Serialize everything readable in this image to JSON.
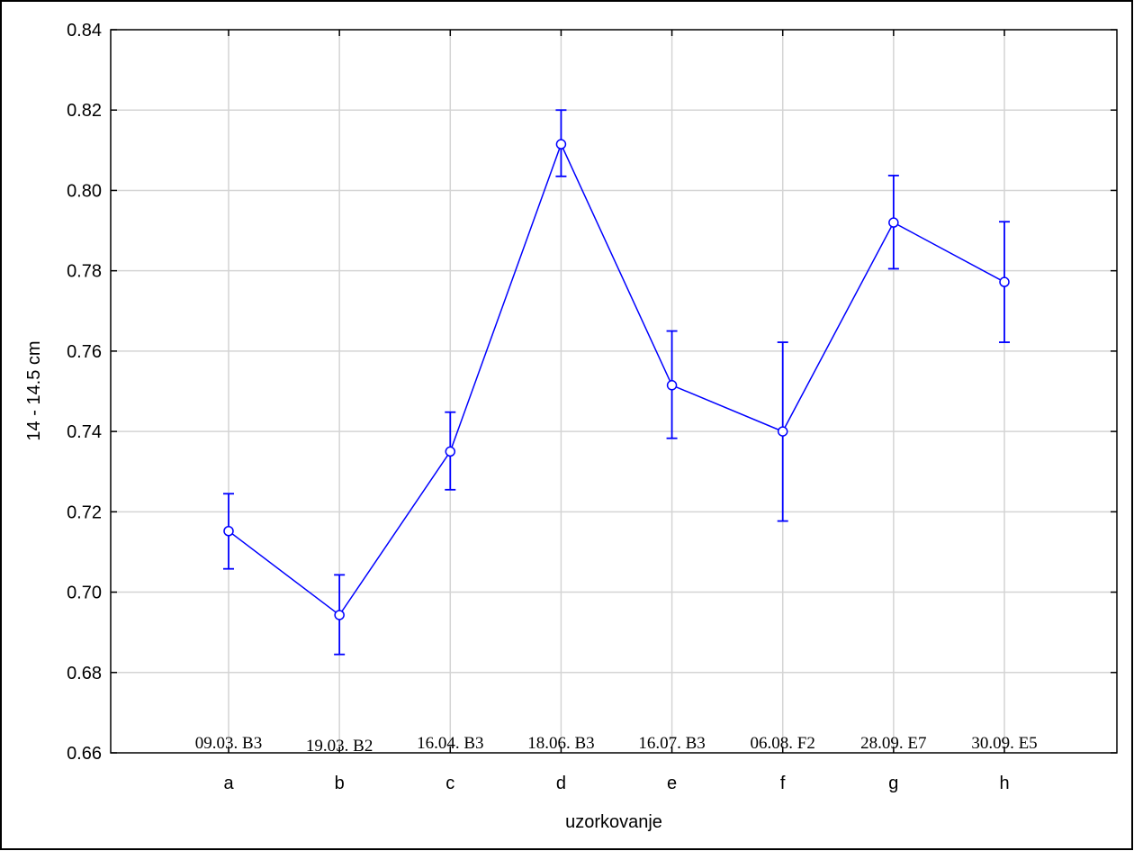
{
  "chart_data": {
    "type": "line",
    "xlabel": "uzorkovanje",
    "ylabel": "14 - 14.5 cm",
    "ylim": [
      0.66,
      0.84
    ],
    "yticks": [
      "0.66",
      "0.68",
      "0.70",
      "0.72",
      "0.74",
      "0.76",
      "0.78",
      "0.80",
      "0.82",
      "0.84"
    ],
    "grid": true,
    "error_bars": true,
    "series_color": "#0000ff",
    "categories": [
      "a",
      "b",
      "c",
      "d",
      "e",
      "f",
      "g",
      "h"
    ],
    "annotations": [
      "09.03. B3",
      "19.03. B2",
      "16.04. B3",
      "18.06. B3",
      "16.07. B3",
      "06.08. F2",
      "28.09. E7",
      "30.09. E5"
    ],
    "series": [
      {
        "values": [
          0.7152,
          0.6943,
          0.735,
          0.8115,
          0.7515,
          0.74,
          0.792,
          0.7772
        ],
        "lower": [
          0.7058,
          0.6845,
          0.7255,
          0.8035,
          0.7383,
          0.7177,
          0.7805,
          0.7622
        ],
        "upper": [
          0.7245,
          0.7043,
          0.7448,
          0.82,
          0.765,
          0.7622,
          0.8037,
          0.7922
        ]
      }
    ]
  }
}
